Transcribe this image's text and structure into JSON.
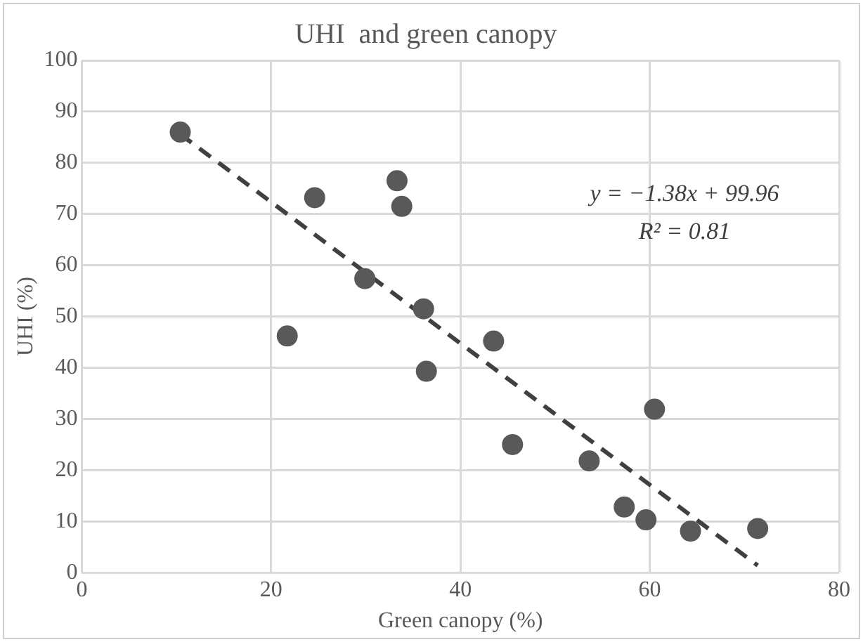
{
  "chart_data": {
    "type": "scatter",
    "title": "UHI  and green canopy",
    "xlabel": "Green canopy (%)",
    "ylabel": "UHI (%)",
    "xlim": [
      0,
      80
    ],
    "xticks": [
      0,
      20,
      40,
      60,
      80
    ],
    "ylim": [
      0,
      100
    ],
    "yticks": [
      0,
      10,
      20,
      30,
      40,
      50,
      60,
      70,
      80,
      90,
      100
    ],
    "grid": true,
    "legend": false,
    "marker": "circle",
    "series": [
      {
        "color": "#595959",
        "x": [
          10.4,
          24.6,
          33.3,
          33.8,
          29.9,
          36.1,
          21.7,
          36.4,
          43.5,
          45.5,
          60.5,
          53.6,
          57.3,
          59.6,
          64.3,
          71.4
        ],
        "values": [
          86.0,
          73.2,
          76.5,
          71.5,
          57.4,
          51.5,
          46.2,
          39.3,
          45.2,
          25.0,
          31.9,
          21.8,
          12.8,
          10.3,
          8.1,
          8.6
        ]
      },
      {
        "type": "line",
        "color": "#404040",
        "line_style": "dashed",
        "marker": "none",
        "x": [
          10.4,
          71.4
        ],
        "values": [
          85.6,
          1.4
        ]
      }
    ],
    "annotations": [
      "y = −1.38x + 99.96",
      "R² = 0.81"
    ]
  }
}
